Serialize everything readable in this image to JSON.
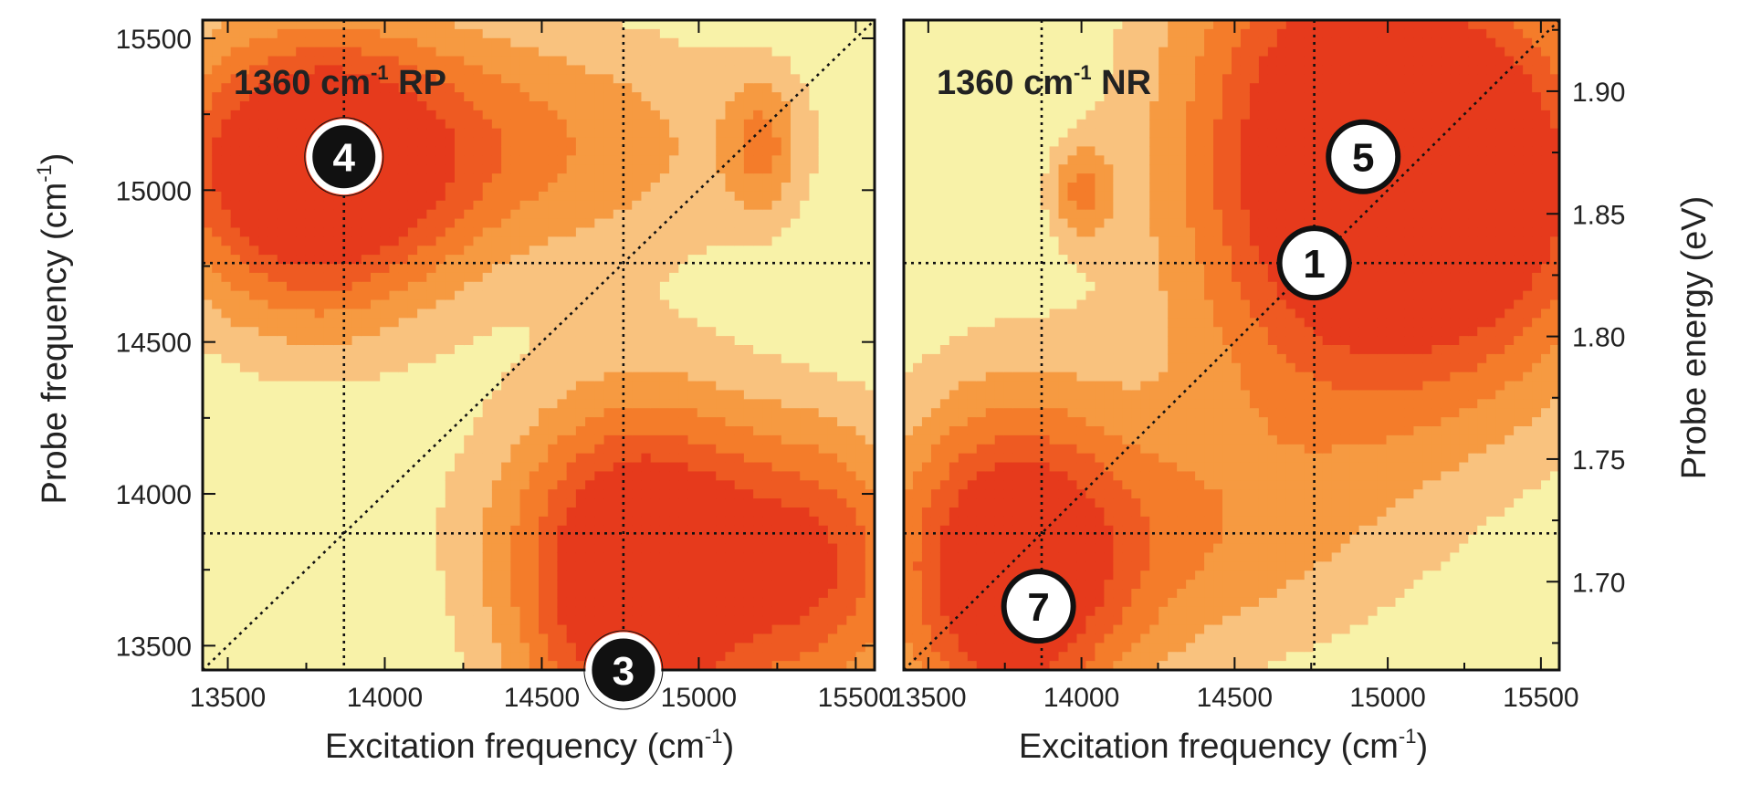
{
  "chart_data": [
    {
      "type": "heatmap",
      "panel_label": "1360 cm",
      "panel_label_sup": "-1",
      "panel_label_suffix": " RP",
      "xlabel": "Excitation frequency (cm",
      "xlabel_sup": "-1",
      "xlabel_suffix": ")",
      "ylabel": "Probe frequency (cm",
      "ylabel_sup": "-1",
      "ylabel_suffix": ")",
      "xlim": [
        13420,
        15560
      ],
      "ylim": [
        13420,
        15560
      ],
      "xticks": [
        "13500",
        "14000",
        "14500",
        "15000",
        "15500"
      ],
      "yticks": [
        "13500",
        "14000",
        "14500",
        "15000",
        "15500"
      ],
      "colormap": [
        "#f8f2a8",
        "#f9c27e",
        "#f69a41",
        "#f47c2a",
        "#ee5a22",
        "#e63a1c"
      ],
      "ref_lines": {
        "x": [
          13870,
          14760
        ],
        "y": [
          13870,
          14760
        ]
      },
      "diagonal": true,
      "peaks": [
        {
          "x": 13770,
          "y": 15030,
          "sx": 300,
          "sy": 330,
          "amp": 1.0
        },
        {
          "x": 14200,
          "y": 15150,
          "sx": 650,
          "sy": 280,
          "amp": 0.55
        },
        {
          "x": 14800,
          "y": 13650,
          "sx": 260,
          "sy": 420,
          "amp": 1.08
        },
        {
          "x": 15380,
          "y": 13720,
          "sx": 220,
          "sy": 320,
          "amp": 0.6
        },
        {
          "x": 15000,
          "y": 13900,
          "sx": 500,
          "sy": 300,
          "amp": 0.35
        },
        {
          "x": 15200,
          "y": 15150,
          "sx": 80,
          "sy": 160,
          "amp": 0.4
        }
      ],
      "markers": [
        {
          "label": "4",
          "x": 13870,
          "y": 15110,
          "style": "dark"
        },
        {
          "label": "3",
          "x": 14760,
          "y": 13420,
          "style": "dark"
        }
      ]
    },
    {
      "type": "heatmap",
      "panel_label": "1360 cm",
      "panel_label_sup": "-1",
      "panel_label_suffix": " NR",
      "xlabel": "Excitation frequency (cm",
      "xlabel_sup": "-1",
      "xlabel_suffix": ")",
      "ylabel2": "Probe energy (eV)",
      "xlim": [
        13420,
        15560
      ],
      "ylim": [
        13420,
        15560
      ],
      "ylim_right_eV": [
        1.664,
        1.929
      ],
      "xticks": [
        "13500",
        "14000",
        "14500",
        "15000",
        "15500"
      ],
      "yticks_right": [
        "1.70",
        "1.75",
        "1.80",
        "1.85",
        "1.90"
      ],
      "colormap": [
        "#f8f2a8",
        "#f9c27e",
        "#f69a41",
        "#f47c2a",
        "#ee5a22",
        "#e63a1c"
      ],
      "ref_lines": {
        "x": [
          13870,
          14760
        ],
        "y": [
          13870,
          14760
        ]
      },
      "diagonal": true,
      "peaks": [
        {
          "x": 14850,
          "y": 15100,
          "sx": 380,
          "sy": 600,
          "amp": 1.15
        },
        {
          "x": 15350,
          "y": 15000,
          "sx": 350,
          "sy": 450,
          "amp": 0.8
        },
        {
          "x": 13760,
          "y": 13700,
          "sx": 260,
          "sy": 420,
          "amp": 0.95
        },
        {
          "x": 14150,
          "y": 13850,
          "sx": 500,
          "sy": 300,
          "amp": 0.45
        },
        {
          "x": 14000,
          "y": 15000,
          "sx": 70,
          "sy": 110,
          "amp": 0.45
        }
      ],
      "markers": [
        {
          "label": "5",
          "x": 14920,
          "y": 15110,
          "style": "light"
        },
        {
          "label": "1",
          "x": 14760,
          "y": 14760,
          "style": "light"
        },
        {
          "label": "7",
          "x": 13860,
          "y": 13630,
          "style": "light"
        }
      ]
    }
  ]
}
